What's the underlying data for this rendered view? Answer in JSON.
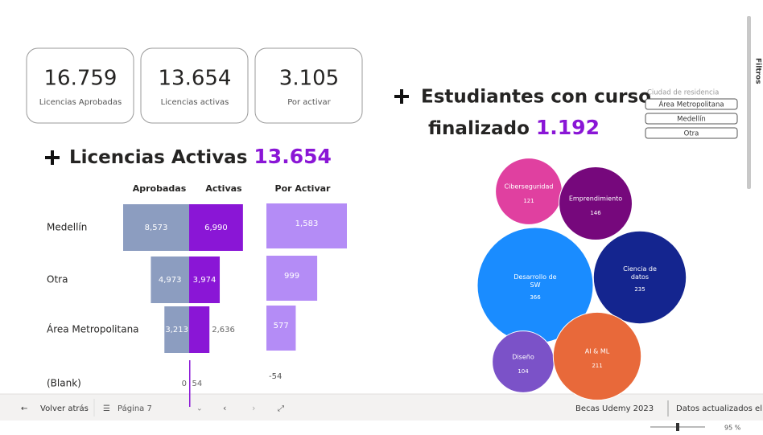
{
  "kpis": [
    {
      "value": "16.759",
      "label": "Licencias Aprobadas"
    },
    {
      "value": "13.654",
      "label": "Licencias activas"
    },
    {
      "value": "3.105",
      "label": "Por activar"
    }
  ],
  "students": {
    "title_line1": "Estudiantes con curso",
    "title_line2": "finalizado",
    "value": "1.192"
  },
  "slicer": {
    "title": "Ciudad de residencia",
    "options": [
      "Área Metropolitana",
      "Medellín",
      "Otra"
    ]
  },
  "side_label": "Filtros",
  "licencias": {
    "title": "Licencias Activas",
    "value": "13.654"
  },
  "chart_data": [
    {
      "type": "bar",
      "categories": [
        "Medellín",
        "Otra",
        "Área Metropolitana",
        "(Blank)"
      ],
      "series": [
        {
          "name": "Aprobadas",
          "color": "#8c9dc0",
          "values": [
            8573,
            4973,
            3213,
            0
          ],
          "value_labels": [
            "8,573",
            "4,973",
            "3,213",
            "0"
          ]
        },
        {
          "name": "Activas",
          "color": "#8a16d6",
          "values": [
            6990,
            3974,
            2636,
            54
          ],
          "value_labels": [
            "6,990",
            "3,974",
            "2,636",
            "54"
          ]
        },
        {
          "name": "Por Activar",
          "color": "#b48cf6",
          "values": [
            1583,
            999,
            577,
            -54
          ],
          "value_labels": [
            "1,583",
            "999",
            "577",
            "-54"
          ]
        }
      ]
    },
    {
      "type": "bubble",
      "categories": [
        "Ciberseguridad",
        "Emprendimiento",
        "Desarrollo de SW",
        "Ciencia de datos",
        "Diseño",
        "AI & ML"
      ],
      "values": [
        121,
        146,
        366,
        235,
        104,
        211
      ],
      "colors": [
        "#e040a0",
        "#76087c",
        "#1a8cff",
        "#14258f",
        "#7b52c8",
        "#e8693a"
      ]
    }
  ],
  "footer": {
    "back": "Volver atrás",
    "page": "Página 7",
    "report": "Becas Udemy 2023",
    "updated": "Datos actualizados el ...",
    "zoom": "95 %"
  }
}
